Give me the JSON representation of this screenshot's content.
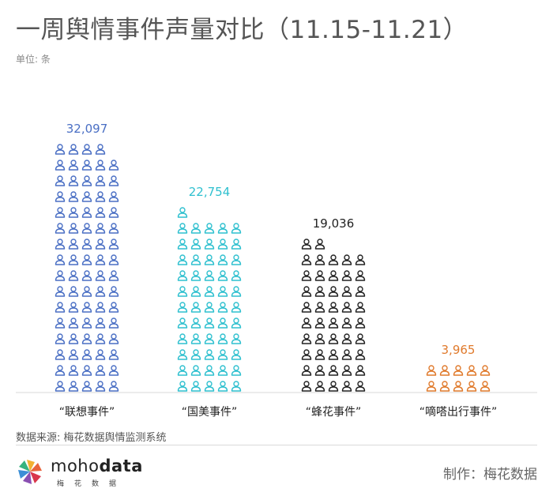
{
  "header": {
    "title": "一周舆情事件声量对比（11.15-11.21）",
    "unit": "单位: 条"
  },
  "footer": {
    "source": "数据来源: 梅花数据舆情监测系统",
    "credit": "制作：梅花数据",
    "logo_word_a": "moho",
    "logo_word_b": "data",
    "logo_sub": "梅花数据"
  },
  "chart_data": {
    "type": "bar",
    "style": "pictograph",
    "icon": "person-icon",
    "categories": [
      "“联想事件”",
      "“国美事件”",
      "“蜂花事件”",
      "“嘀嗒出行事件”"
    ],
    "values": [
      32097,
      22754,
      19036,
      3965
    ],
    "value_labels": [
      "32,097",
      "22,754",
      "19,036",
      "3,965"
    ],
    "colors": [
      "#4a6fc4",
      "#2fc0cf",
      "#222222",
      "#e07a2c"
    ],
    "title": "一周舆情事件声量对比（11.15-11.21）",
    "ylabel": "单位: 条",
    "grid": false
  }
}
